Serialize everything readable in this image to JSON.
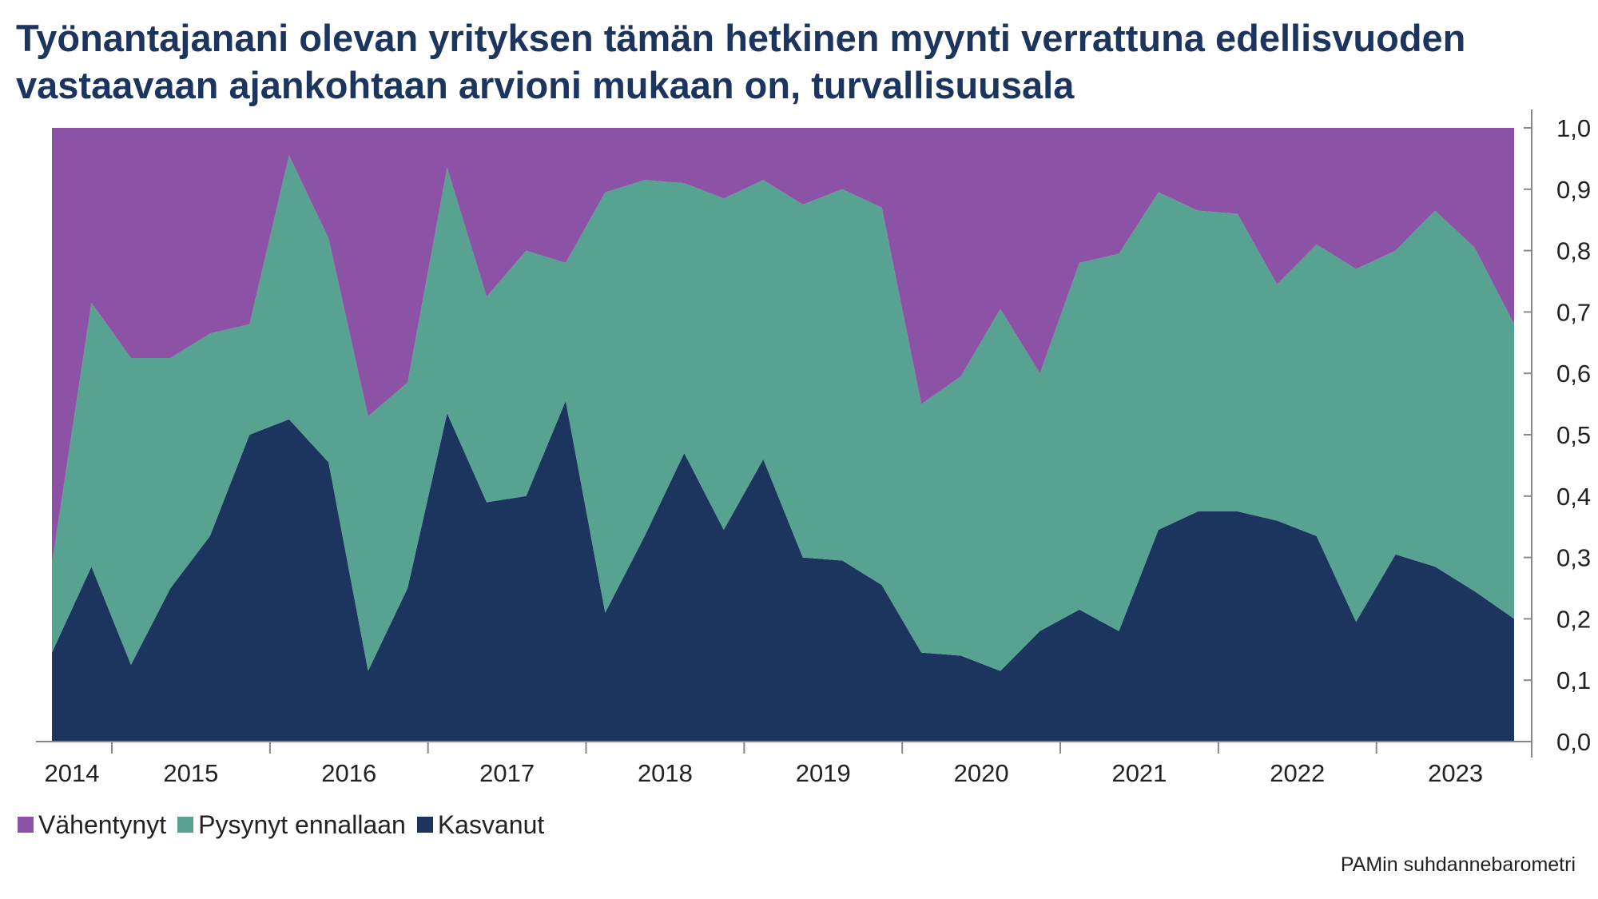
{
  "title": {
    "line1": "Työnantajanani olevan yrityksen tämän hetkinen myynti verrattuna edellisvuoden",
    "line2": "vastaavaan ajankohtaan arvioni mukaan on, turvallisuusala"
  },
  "source": "PAMin suhdannebarometri",
  "colors": {
    "vahentynyt": "#8c52a6",
    "pysynyt": "#58a291",
    "kasvanut": "#1c355e",
    "axis": "#888888"
  },
  "chart_data": {
    "type": "area",
    "stacked": true,
    "ylim": [
      0,
      1
    ],
    "yticks": [
      "0,0",
      "0,1",
      "0,2",
      "0,3",
      "0,4",
      "0,5",
      "0,6",
      "0,7",
      "0,8",
      "0,9",
      "1,0"
    ],
    "year_labels": [
      "2014",
      "2015",
      "2016",
      "2017",
      "2018",
      "2019",
      "2020",
      "2021",
      "2022",
      "2023"
    ],
    "legend_position": "bottom-left",
    "series": [
      {
        "name": "Kasvanut",
        "values": [
          0.145,
          0.285,
          0.125,
          0.25,
          0.335,
          0.5,
          0.525,
          0.455,
          0.115,
          0.25,
          0.535,
          0.39,
          0.4,
          0.555,
          0.21,
          0.335,
          0.47,
          0.345,
          0.46,
          0.3,
          0.295,
          0.255,
          0.145,
          0.14,
          0.115,
          0.18,
          0.215,
          0.18,
          0.345,
          0.375,
          0.375,
          0.36,
          0.335,
          0.195,
          0.305,
          0.285,
          0.245,
          0.2
        ]
      },
      {
        "name": "Pysynyt ennallaan",
        "values": [
          0.145,
          0.43,
          0.5,
          0.375,
          0.33,
          0.18,
          0.43,
          0.365,
          0.415,
          0.335,
          0.4,
          0.335,
          0.4,
          0.225,
          0.685,
          0.58,
          0.44,
          0.54,
          0.455,
          0.575,
          0.605,
          0.615,
          0.405,
          0.455,
          0.59,
          0.42,
          0.565,
          0.615,
          0.55,
          0.49,
          0.485,
          0.385,
          0.475,
          0.575,
          0.495,
          0.58,
          0.56,
          0.48
        ]
      },
      {
        "name": "Vähentynyt",
        "values": [
          0.71,
          0.285,
          0.375,
          0.375,
          0.335,
          0.32,
          0.045,
          0.18,
          0.47,
          0.415,
          0.065,
          0.275,
          0.2,
          0.22,
          0.105,
          0.085,
          0.09,
          0.115,
          0.085,
          0.125,
          0.1,
          0.13,
          0.45,
          0.405,
          0.295,
          0.4,
          0.22,
          0.205,
          0.105,
          0.135,
          0.14,
          0.255,
          0.19,
          0.23,
          0.2,
          0.135,
          0.195,
          0.32
        ]
      }
    ]
  }
}
